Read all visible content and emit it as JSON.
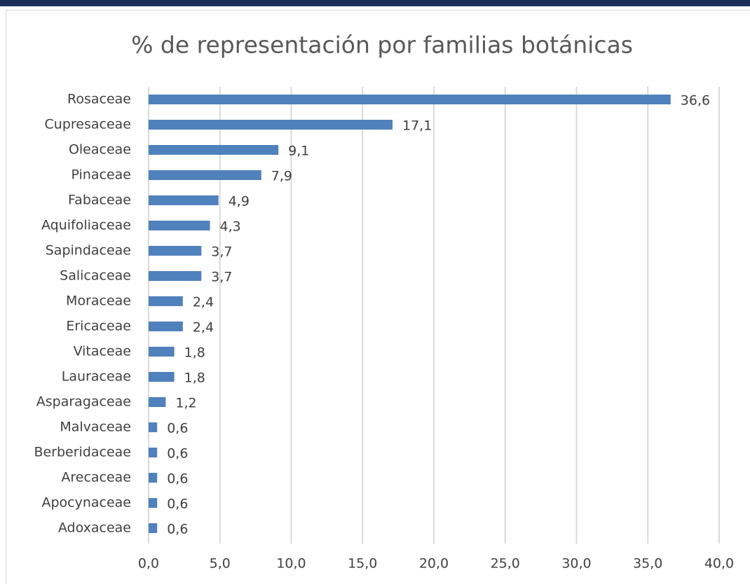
{
  "chart_data": {
    "type": "bar",
    "orientation": "horizontal",
    "title": "% de representación por familias botánicas",
    "categories": [
      "Rosaceae",
      "Cupresaceae",
      "Oleaceae",
      "Pinaceae",
      "Fabaceae",
      "Aquifoliaceae",
      "Sapindaceae",
      "Salicaceae",
      "Moraceae",
      "Ericaceae",
      "Vitaceae",
      "Lauraceae",
      "Asparagaceae",
      "Malvaceae",
      "Berberidaceae",
      "Arecaceae",
      "Apocynaceae",
      "Adoxaceae"
    ],
    "values": [
      36.6,
      17.1,
      9.1,
      7.9,
      4.9,
      4.3,
      3.7,
      3.7,
      2.4,
      2.4,
      1.8,
      1.8,
      1.2,
      0.6,
      0.6,
      0.6,
      0.6,
      0.6
    ],
    "value_labels": [
      "36,6",
      "17,1",
      "9,1",
      "7,9",
      "4,9",
      "4,3",
      "3,7",
      "3,7",
      "2,4",
      "2,4",
      "1,8",
      "1,8",
      "1,2",
      "0,6",
      "0,6",
      "0,6",
      "0,6",
      "0,6"
    ],
    "color": "#4f81bd",
    "xlim": [
      0,
      40
    ],
    "xticks": [
      {
        "value": 0,
        "label": "0,0"
      },
      {
        "value": 5,
        "label": "5,0"
      },
      {
        "value": 10,
        "label": "10,0"
      },
      {
        "value": 15,
        "label": "15,0"
      },
      {
        "value": 20,
        "label": "20,0"
      },
      {
        "value": 25,
        "label": "25,0"
      },
      {
        "value": 30,
        "label": "30,0"
      },
      {
        "value": 35,
        "label": "35,0"
      },
      {
        "value": 40,
        "label": "40,0"
      }
    ],
    "grid": true
  }
}
